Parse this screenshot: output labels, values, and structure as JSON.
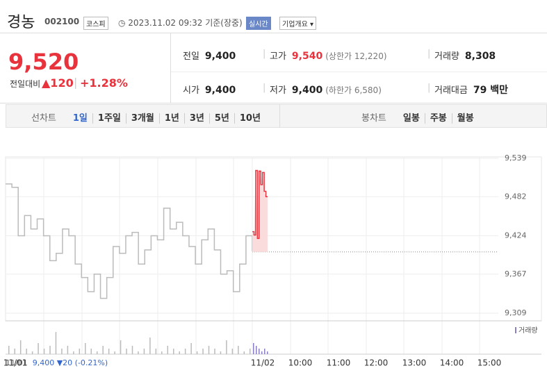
{
  "header": {
    "name": "경농",
    "code": "002100",
    "market": "코스피",
    "timestamp": "2023.11.02 09:32 기준(장중)",
    "realtime": "실시간",
    "company_info": "기업개요"
  },
  "quote": {
    "price": "9,520",
    "change_label": "전일대비",
    "change": "▲120",
    "change_rate": "+1.28%",
    "stats": [
      {
        "label": "전일",
        "value": "9,400"
      },
      {
        "label": "고가",
        "value": "9,540",
        "note": "(상한가 12,220)"
      },
      {
        "label": "거래량",
        "value": "8,308"
      },
      {
        "label": "시가",
        "value": "9,400"
      },
      {
        "label": "저가",
        "value": "9,400",
        "note": "(하한가 6,580)"
      },
      {
        "label": "거래대금",
        "value": "79 백만"
      }
    ]
  },
  "tabs": {
    "line_chart": {
      "label": "선차트",
      "items": [
        "1일",
        "1주일",
        "3개월",
        "1년",
        "3년",
        "5년",
        "10년"
      ],
      "selected": 0
    },
    "candle_chart": {
      "label": "봉차트",
      "items": [
        "일봉",
        "주봉",
        "월봉"
      ]
    }
  },
  "chart_data": {
    "type": "line",
    "ylim": [
      9309,
      9539
    ],
    "yticks": [
      {
        "value": 9309,
        "label": "9,309"
      },
      {
        "value": 9367,
        "label": "9,367"
      },
      {
        "value": 9424,
        "label": "9,424"
      },
      {
        "value": 9482,
        "label": "9,482"
      },
      {
        "value": 9539,
        "label": "9,539"
      }
    ],
    "x_labels": [
      "11/01",
      "11/02",
      "10:00",
      "11:00",
      "12:00",
      "13:00",
      "14:00",
      "15:00"
    ],
    "previous_close": 9400,
    "series": [
      {
        "color": "#bbbbbb",
        "values": [
          9501,
          9496,
          9424,
          9454,
          9434,
          9449,
          9424,
          9387,
          9398,
          9434,
          9424,
          9382,
          9362,
          9341,
          9367,
          9331,
          9362,
          9408,
          9398,
          9424,
          9429,
          9382,
          9403,
          9424,
          9418,
          9465,
          9434,
          9444,
          9424,
          9408,
          9382,
          9418,
          9434,
          9403,
          9367,
          9372,
          9341,
          9382,
          9424,
          9401
        ]
      },
      {
        "color": "#e8323c",
        "values": [
          9430,
          9425,
          9521,
          9420,
          9520,
          9500,
          9518,
          9490,
          9482,
          9482
        ]
      }
    ],
    "volume": [
      3,
      2,
      5,
      2,
      1,
      4,
      2,
      3,
      8,
      2,
      3,
      1,
      2,
      4,
      2,
      1,
      3,
      2,
      1,
      5,
      2,
      3,
      1,
      2,
      6,
      2,
      1,
      3,
      2,
      1,
      2,
      4,
      1,
      2,
      3,
      2,
      1,
      5,
      2,
      3,
      1,
      2,
      4,
      3,
      2,
      1,
      2,
      1
    ],
    "volume_label": "거래량"
  },
  "footer": {
    "date": "11/01",
    "price": "9,400",
    "change": "▼20",
    "rate": "(-0.21%)"
  }
}
